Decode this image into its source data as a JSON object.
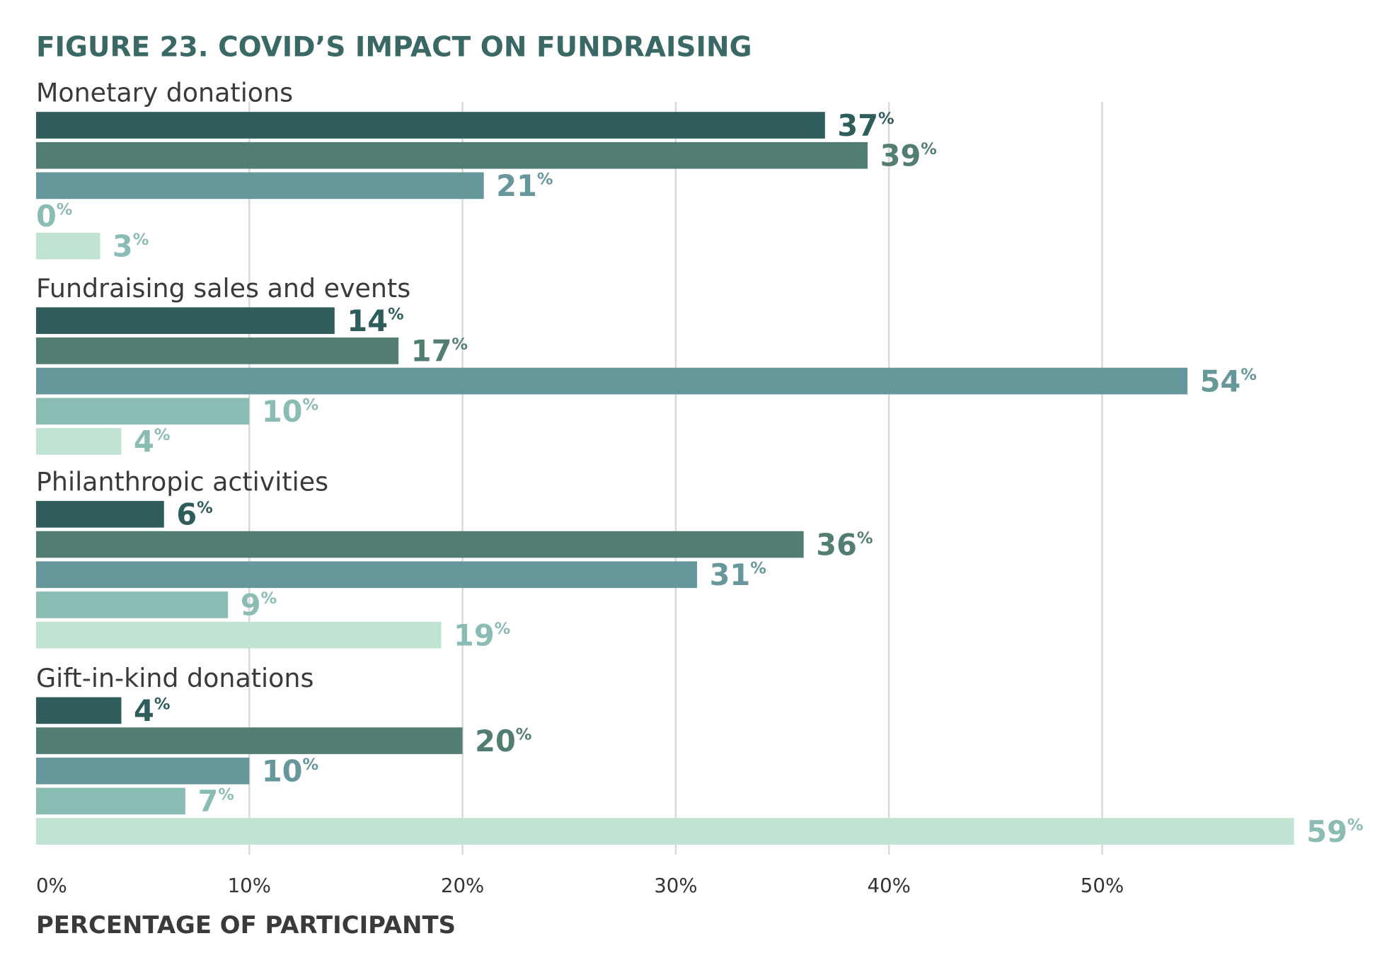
{
  "chart_data": {
    "type": "bar",
    "orientation": "horizontal",
    "title": "FIGURE 23. COVID’S IMPACT ON FUNDRAISING",
    "x_label": "PERCENTAGE OF PARTICIPANTS",
    "categories": [
      "Monetary donations",
      "Fundraising sales and events",
      "Philanthropic activities",
      "Gift-in-kind donations"
    ],
    "series": [
      {
        "color": "#2f5d5b",
        "label_color": "#2f5d5b",
        "values": [
          37,
          14,
          6,
          4
        ],
        "value_labels": [
          "37%",
          "14%",
          "6%",
          "4%"
        ]
      },
      {
        "color": "#527d72",
        "label_color": "#527d72",
        "values": [
          39,
          17,
          36,
          20
        ],
        "value_labels": [
          "39%",
          "17%",
          "36%",
          "20%"
        ]
      },
      {
        "color": "#66979a",
        "label_color": "#66979a",
        "values": [
          21,
          54,
          31,
          10
        ],
        "value_labels": [
          "21%",
          "54%",
          "31%",
          "10%"
        ]
      },
      {
        "color": "#8bbcb4",
        "label_color": "#8bbcb4",
        "values": [
          0,
          10,
          9,
          7
        ],
        "value_labels": [
          "0%",
          "10%",
          "9%",
          "7%"
        ]
      },
      {
        "color": "#c1e3d2",
        "label_color": "#8bbcb4",
        "values": [
          3,
          4,
          19,
          59
        ],
        "value_labels": [
          "3%",
          "4%",
          "19%",
          "59%"
        ]
      }
    ],
    "xlim": [
      0,
      60
    ],
    "xticks": [
      {
        "value": 0,
        "label": "0%"
      },
      {
        "value": 10,
        "label": "10%"
      },
      {
        "value": 20,
        "label": "20%"
      },
      {
        "value": 30,
        "label": "30%"
      },
      {
        "value": 40,
        "label": "40%"
      },
      {
        "value": 50,
        "label": "50%"
      }
    ],
    "grid": true
  }
}
